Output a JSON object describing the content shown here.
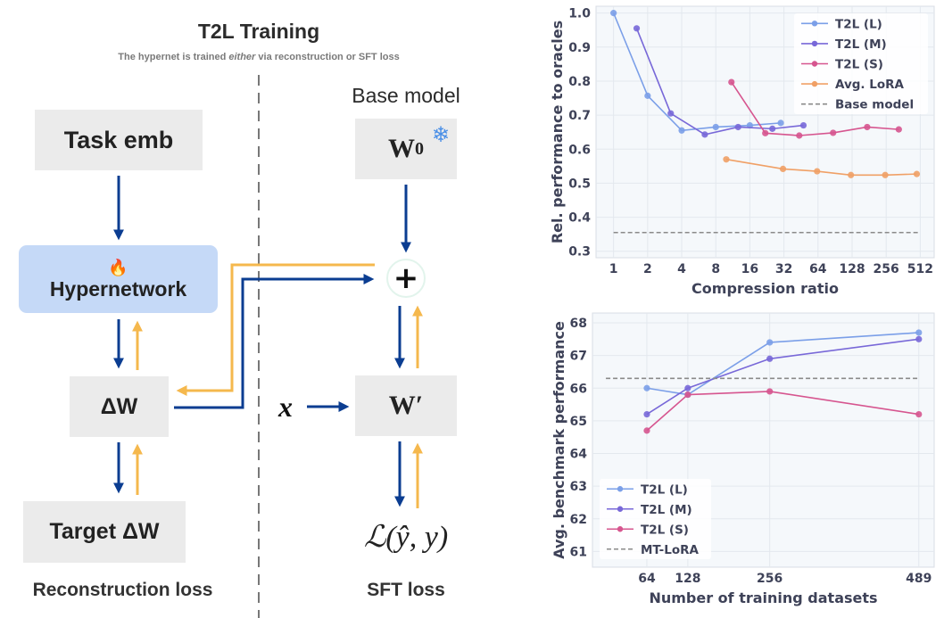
{
  "diagram": {
    "title": "T2L Training",
    "subtitle_pre": "The hypernet is trained ",
    "subtitle_em": "either",
    "subtitle_post": " via reconstruction or SFT loss",
    "task_emb": "Task emb",
    "hypernetwork": "Hypernetwork",
    "fire_icon": "🔥",
    "delta_w": "ΔW",
    "target_delta_w": "Target ΔW",
    "base_model": "Base model",
    "w0": "W",
    "w0_sub": "0",
    "snowflake_icon": "❄",
    "plus": "+",
    "w_prime": "W′",
    "x_input": "x",
    "loss": "ℒ(ŷ, y)",
    "reconstruction_loss": "Reconstruction loss",
    "sft_loss": "SFT loss",
    "colors": {
      "forward": "#0b3d91",
      "backward": "#f5b84d",
      "hyper_bg": "#c5d9f7",
      "box_bg": "#ebebeb"
    }
  },
  "chart_data": [
    {
      "type": "line",
      "xlabel": "Compression ratio",
      "ylabel": "Rel. performance to oracles",
      "xscale": "log2",
      "xlim": [
        0.7,
        680
      ],
      "ylim": [
        0.281,
        1.02
      ],
      "xticks": [
        1,
        2,
        4,
        8,
        16,
        32,
        64,
        128,
        256,
        512
      ],
      "xtick_labels": [
        "1",
        "2",
        "4",
        "8",
        "16",
        "32",
        "64",
        "128",
        "256",
        "512"
      ],
      "yticks": [
        0.3,
        0.4,
        0.5,
        0.6,
        0.7,
        0.8,
        0.9,
        1.0
      ],
      "ytick_labels": [
        "0.3",
        "0.4",
        "0.5",
        "0.6",
        "0.7",
        "0.8",
        "0.9",
        "1.0"
      ],
      "grid": true,
      "legend": "top-right",
      "series": [
        {
          "name": "T2L (L)",
          "color": "#7b9fe8",
          "x": [
            1,
            2,
            4,
            8,
            16,
            30
          ],
          "y": [
            1.0,
            0.757,
            0.655,
            0.665,
            0.67,
            0.677
          ]
        },
        {
          "name": "T2L (M)",
          "color": "#7868d8",
          "x": [
            1.6,
            3.2,
            6.4,
            12.6,
            25.3,
            47.6
          ],
          "y": [
            0.955,
            0.705,
            0.643,
            0.665,
            0.66,
            0.67
          ]
        },
        {
          "name": "T2L (S)",
          "color": "#d6558f",
          "x": [
            11,
            21.9,
            43.7,
            87,
            174,
            331
          ],
          "y": [
            0.797,
            0.647,
            0.64,
            0.648,
            0.665,
            0.658
          ]
        },
        {
          "name": "Avg. LoRA",
          "color": "#f0a066",
          "x": [
            9.9,
            31.4,
            62.8,
            125,
            251,
            477
          ],
          "y": [
            0.57,
            0.542,
            0.535,
            0.524,
            0.524,
            0.527
          ]
        },
        {
          "name": "Base model",
          "color": "#8a8a8a",
          "dashed": true,
          "x": [
            1,
            512
          ],
          "y": [
            0.355,
            0.355
          ]
        }
      ]
    },
    {
      "type": "line",
      "xlabel": "Number of training datasets",
      "ylabel": "Avg. benchmark performance",
      "xscale": "linear",
      "xlim": [
        -21,
        513
      ],
      "ylim": [
        60.52,
        68.3
      ],
      "xticks": [
        64,
        128,
        256,
        489
      ],
      "xtick_labels": [
        "64",
        "128",
        "256",
        "489"
      ],
      "yticks": [
        61,
        62,
        63,
        64,
        65,
        66,
        67,
        68
      ],
      "ytick_labels": [
        "61",
        "62",
        "63",
        "64",
        "65",
        "66",
        "67",
        "68"
      ],
      "grid": true,
      "legend": "bottom-left",
      "series": [
        {
          "name": "T2L (L)",
          "color": "#7b9fe8",
          "x": [
            64,
            128,
            256,
            489
          ],
          "y": [
            66.0,
            65.8,
            67.4,
            67.7
          ]
        },
        {
          "name": "T2L (M)",
          "color": "#7868d8",
          "x": [
            64,
            128,
            256,
            489
          ],
          "y": [
            65.2,
            66.0,
            66.9,
            67.5
          ]
        },
        {
          "name": "T2L (S)",
          "color": "#d6558f",
          "x": [
            64,
            128,
            256,
            489
          ],
          "y": [
            64.7,
            65.8,
            65.9,
            65.2
          ]
        },
        {
          "name": "MT-LoRA",
          "color": "#8a8a8a",
          "dashed": true,
          "x": [
            0,
            489
          ],
          "y": [
            66.3,
            66.3
          ]
        }
      ]
    }
  ]
}
